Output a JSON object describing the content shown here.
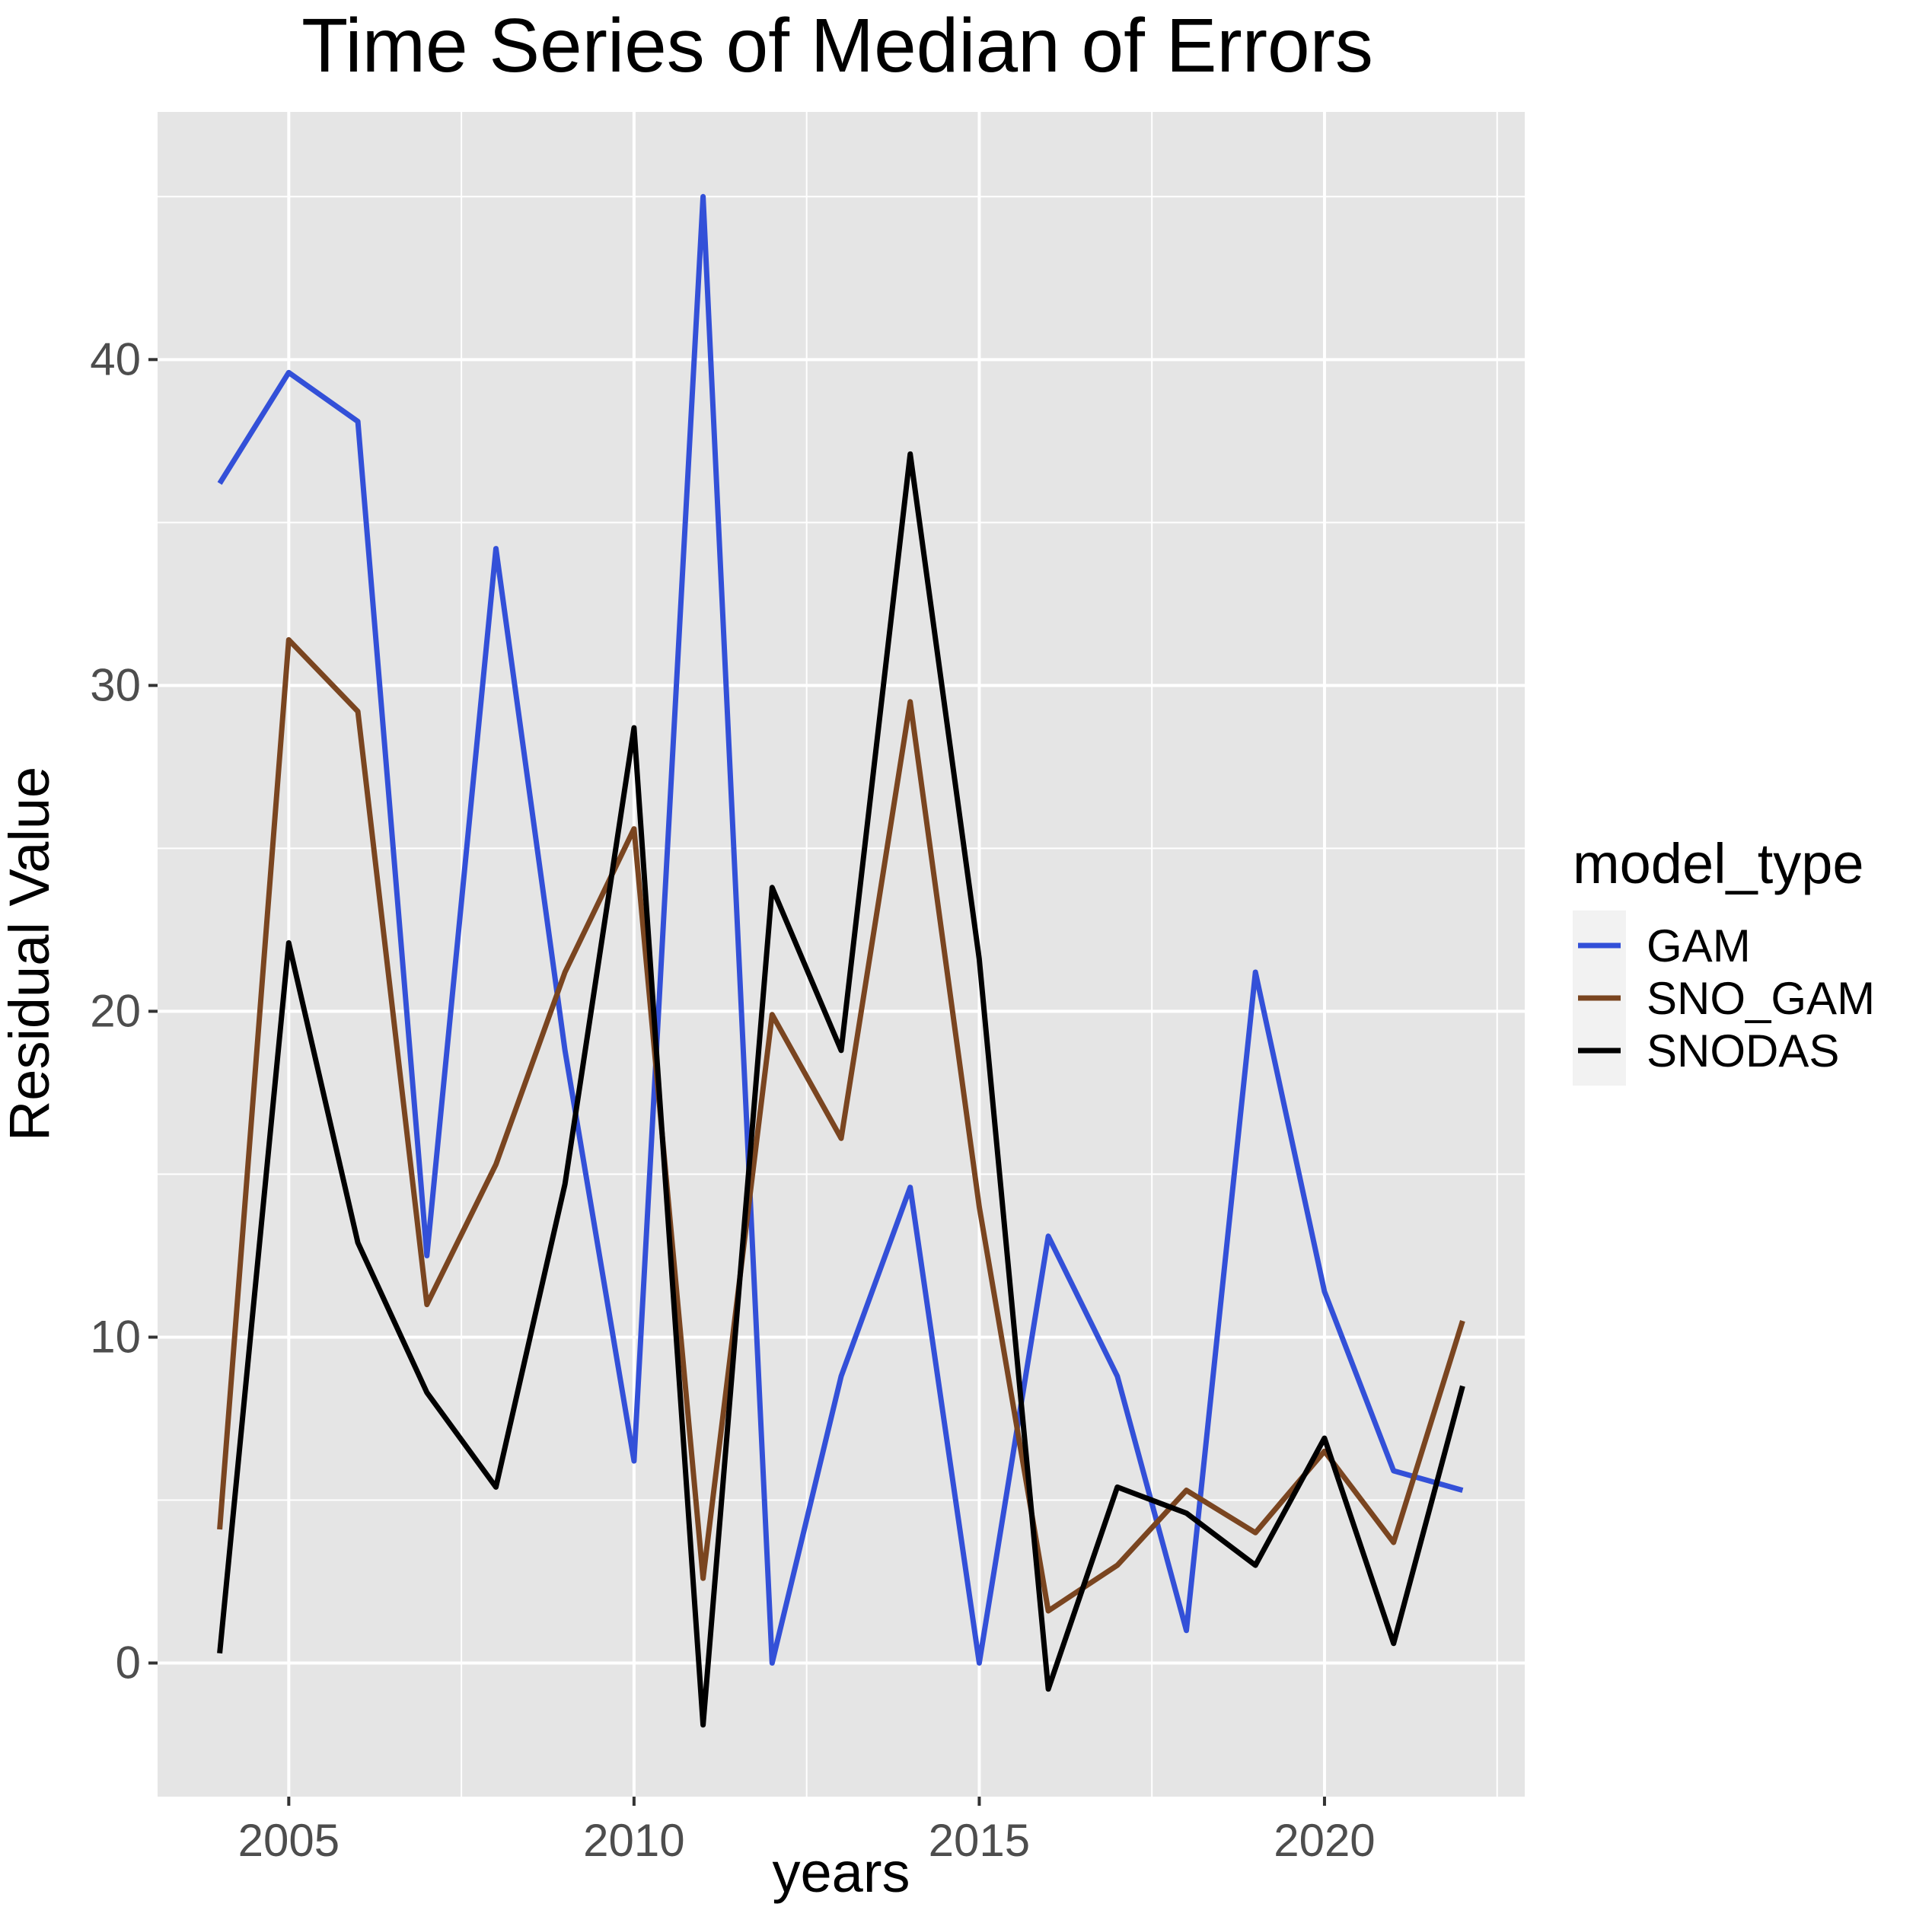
{
  "chart_data": {
    "type": "line",
    "title": "Time Series of Median of Errors",
    "xlabel": "years",
    "ylabel": "Residual Value",
    "x": [
      2004,
      2005,
      2006,
      2007,
      2008,
      2009,
      2010,
      2011,
      2012,
      2013,
      2014,
      2015,
      2016,
      2017,
      2018,
      2019,
      2020,
      2021,
      2022
    ],
    "xlim": [
      2003.1,
      2022.9
    ],
    "ylim": [
      -4.1,
      47.6
    ],
    "xticks": [
      2005,
      2010,
      2015,
      2020
    ],
    "xtick_labels": [
      "2005",
      "2010",
      "2015",
      "2020"
    ],
    "yticks": [
      0,
      10,
      20,
      30,
      40
    ],
    "ytick_labels": [
      "0",
      "10",
      "20",
      "30",
      "40"
    ],
    "grid": true,
    "background": "#e5e5e5",
    "legend_position": "right",
    "legend": {
      "title": "model_type"
    },
    "series": [
      {
        "name": "GAM",
        "color": "#3350d8",
        "values": [
          36.2,
          39.6,
          38.1,
          12.5,
          34.2,
          18.8,
          6.2,
          45.0,
          0.0,
          8.8,
          14.6,
          0.0,
          13.1,
          8.8,
          1.0,
          21.2,
          11.4,
          5.9,
          5.3
        ]
      },
      {
        "name": "SNO_GAM",
        "color": "#7a4520",
        "values": [
          4.1,
          31.4,
          29.2,
          11.0,
          15.3,
          21.2,
          25.6,
          2.6,
          19.9,
          16.1,
          29.5,
          14.0,
          1.6,
          3.0,
          5.3,
          4.0,
          6.5,
          3.7,
          10.5
        ]
      },
      {
        "name": "SNODAS",
        "color": "#000000",
        "values": [
          0.3,
          22.1,
          12.9,
          8.3,
          5.4,
          14.7,
          28.7,
          -1.9,
          23.8,
          18.8,
          37.1,
          21.6,
          -0.8,
          5.4,
          4.6,
          3.0,
          6.9,
          0.6,
          8.5
        ]
      }
    ]
  }
}
